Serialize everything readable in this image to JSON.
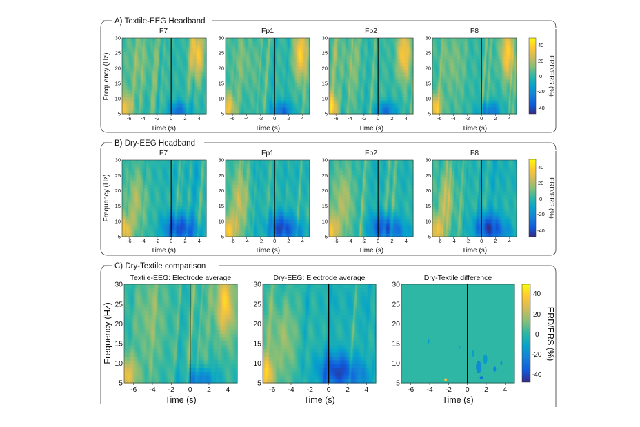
{
  "sections": [
    {
      "title": "A) Textile-EEG Headband",
      "ylabel": "Frequency (Hz)",
      "colorbar_label": "ERD/ERS (%)",
      "colorbar_ticks": [
        "40",
        "20",
        "0",
        "-20",
        "-40"
      ],
      "panels": [
        {
          "title": "F7",
          "xlabel": "Time (s)"
        },
        {
          "title": "Fp1",
          "xlabel": "Time (s)"
        },
        {
          "title": "Fp2",
          "xlabel": "Time (s)"
        },
        {
          "title": "F8",
          "xlabel": "Time (s)"
        }
      ]
    },
    {
      "title": "B) Dry-EEG Headband",
      "ylabel": "Frequency (Hz)",
      "colorbar_label": "ERD/ERS (%)",
      "colorbar_ticks": [
        "40",
        "20",
        "0",
        "-20",
        "-40"
      ],
      "panels": [
        {
          "title": "F7",
          "xlabel": "Time (s)"
        },
        {
          "title": "Fp1",
          "xlabel": "Time (s)"
        },
        {
          "title": "Fp2",
          "xlabel": "Time (s)"
        },
        {
          "title": "F8",
          "xlabel": "Time (s)"
        }
      ]
    },
    {
      "title": "C) Dry-Textile comparison",
      "ylabel": "Frequency (Hz)",
      "colorbar_label": "ERD/ERS (%)",
      "colorbar_ticks": [
        "40",
        "20",
        "0",
        "-20",
        "-40"
      ],
      "panels": [
        {
          "title": "Textile-EEG: Electrode average",
          "xlabel": "Time (s)"
        },
        {
          "title": "Dry-EEG: Electrode average",
          "xlabel": "Time (s)"
        },
        {
          "title": "Dry-Textile difference",
          "xlabel": "Time (s)"
        }
      ]
    }
  ],
  "chart_data": {
    "type": "heatmap",
    "x_ticks": [
      -6,
      -4,
      -2,
      0,
      2,
      4
    ],
    "y_ticks": [
      5,
      10,
      15,
      20,
      25,
      30
    ],
    "xlim": [
      -7,
      5
    ],
    "ylim": [
      5,
      30
    ],
    "clim": [
      -50,
      50
    ],
    "event_marker_x": 0,
    "colormap": "parula",
    "colormap_colors": [
      "#352a87",
      "#0f5cdd",
      "#1481d6",
      "#06a4ca",
      "#2eb7a4",
      "#87bf77",
      "#d1bb59",
      "#fec832",
      "#f9fb0e"
    ]
  }
}
